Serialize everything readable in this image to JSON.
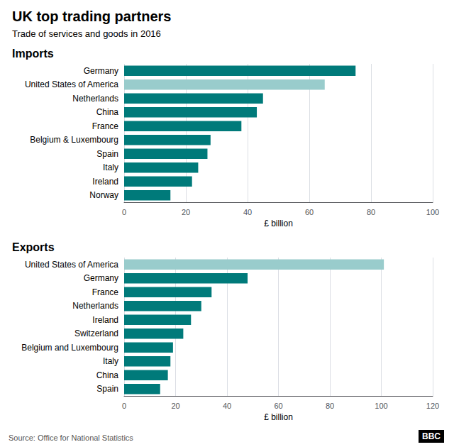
{
  "title": "UK top trading partners",
  "subtitle": "Trade of services and goods in 2016",
  "source": "Source: Office for National Statistics",
  "annotations": [
    "BBC"
  ],
  "chart_data": [
    {
      "type": "bar",
      "orientation": "horizontal",
      "title": "Imports",
      "categories": [
        "Germany",
        "United States of America",
        "Netherlands",
        "China",
        "France",
        "Belgium & Luxembourg",
        "Spain",
        "Italy",
        "Ireland",
        "Norway"
      ],
      "values": [
        75,
        65,
        45,
        43,
        38,
        28,
        27,
        24,
        22,
        15
      ],
      "colors": [
        "#007a7a",
        "#99cccc",
        "#007a7a",
        "#007a7a",
        "#007a7a",
        "#007a7a",
        "#007a7a",
        "#007a7a",
        "#007a7a",
        "#007a7a"
      ],
      "xlabel": "£ billion",
      "xlim": [
        0,
        100
      ],
      "xticks": [
        0,
        20,
        40,
        60,
        80,
        100
      ],
      "grid": true
    },
    {
      "type": "bar",
      "orientation": "horizontal",
      "title": "Exports",
      "categories": [
        "United States of America",
        "Germany",
        "France",
        "Netherlands",
        "Ireland",
        "Switzerland",
        "Belgium and Luxembourg",
        "Italy",
        "China",
        "Spain"
      ],
      "values": [
        101,
        48,
        34,
        30,
        26,
        23,
        19,
        18,
        17,
        14
      ],
      "colors": [
        "#99cccc",
        "#007a7a",
        "#007a7a",
        "#007a7a",
        "#007a7a",
        "#007a7a",
        "#007a7a",
        "#007a7a",
        "#007a7a",
        "#007a7a"
      ],
      "xlabel": "£ billion",
      "xlim": [
        0,
        120
      ],
      "xticks": [
        0,
        20,
        40,
        60,
        80,
        100,
        120
      ],
      "grid": true
    }
  ]
}
